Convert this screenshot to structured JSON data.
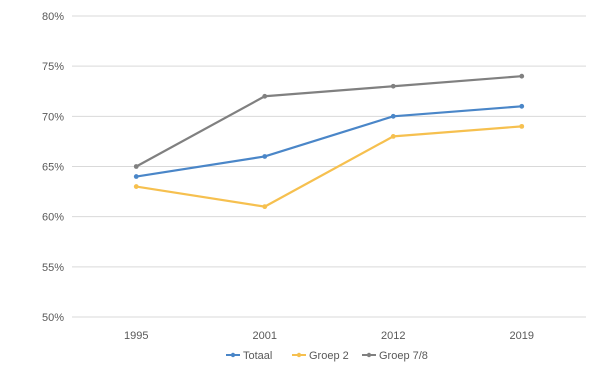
{
  "chart_data": {
    "type": "line",
    "categories": [
      "1995",
      "2001",
      "2012",
      "2019"
    ],
    "series": [
      {
        "name": "Totaal",
        "color": "#4a86c8",
        "values": [
          64,
          66,
          70,
          71
        ]
      },
      {
        "name": "Groep 2",
        "color": "#f6c04f",
        "values": [
          63,
          61,
          68,
          69
        ]
      },
      {
        "name": "Groep 7/8",
        "color": "#808080",
        "values": [
          65,
          72,
          73,
          74
        ]
      }
    ],
    "ylim": [
      50,
      80
    ],
    "y_ticks": [
      50,
      55,
      60,
      65,
      70,
      75,
      80
    ],
    "y_tick_labels": [
      "50%",
      "55%",
      "60%",
      "65%",
      "70%",
      "75%",
      "80%"
    ],
    "grid": "horizontal",
    "legend_position": "bottom",
    "title": "",
    "xlabel": "",
    "ylabel": ""
  }
}
